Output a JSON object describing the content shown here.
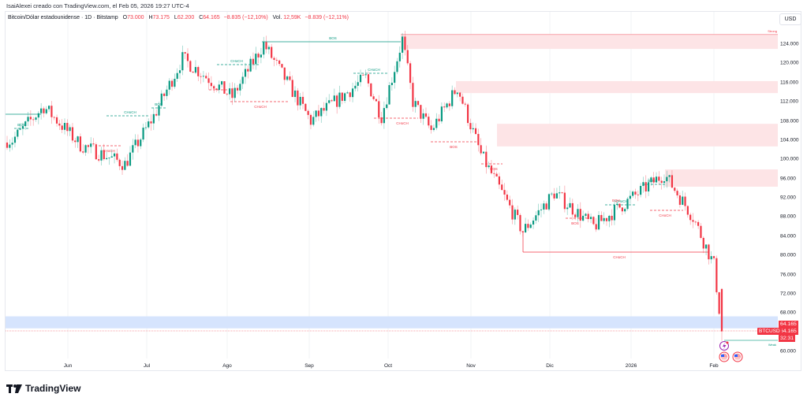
{
  "caption": "IsaiAlexei creado con TradingView.com, el Feb 05, 2026 19:27 UTC-4",
  "legend": {
    "symbol": "Bitcoin/Dólar estadounidense · 1D · Bitstamp",
    "open_label": "O",
    "open": "73.000",
    "high_label": "H",
    "high": "73.175",
    "low_label": "L",
    "low": "62.200",
    "close_label": "C",
    "close": "64.165",
    "change": "−8.835 (−12,10%)",
    "vol_label": "Vol.",
    "vol": "12,59K",
    "vol_change": "−8.839 (−12,11%)"
  },
  "currency_button": "USD",
  "price_tags": {
    "last": "64.165",
    "last2": "64.165",
    "countdown": "32:31",
    "symbol": "BTCUSD"
  },
  "logo_text": "TradingView",
  "colors": {
    "up": "#089981",
    "down": "#f23645",
    "supply_zone": "#fde4e6",
    "demand_zone": "#d6e4fd",
    "bos": "#089981",
    "choch_bear": "#f23645"
  },
  "chart_data": {
    "type": "candlestick",
    "title": "Bitcoin/Dólar estadounidense · 1D · Bitstamp",
    "ylabel": "USD",
    "ylim": [
      58000,
      128000
    ],
    "y_ticks": [
      "124.000",
      "120.000",
      "116.000",
      "112.000",
      "108.000",
      "104.000",
      "100.000",
      "96.000",
      "92.000",
      "88.000",
      "84.000",
      "80.000",
      "76.000",
      "72.000",
      "68.000",
      "60.000"
    ],
    "x_ticks": [
      "Jun",
      "Jul",
      "Ago",
      "Sep",
      "Oct",
      "Nov",
      "Dic",
      "2026",
      "Feb"
    ],
    "last_close": 64165,
    "approx_path": [
      {
        "date": "2025-05-10",
        "close": 104000
      },
      {
        "date": "2025-05-22",
        "close": 111000
      },
      {
        "date": "2025-06-05",
        "close": 103000
      },
      {
        "date": "2025-06-22",
        "close": 99000
      },
      {
        "date": "2025-07-03",
        "close": 109000
      },
      {
        "date": "2025-07-14",
        "close": 121000
      },
      {
        "date": "2025-08-02",
        "close": 113000
      },
      {
        "date": "2025-08-14",
        "close": 124000
      },
      {
        "date": "2025-09-01",
        "close": 108000
      },
      {
        "date": "2025-09-22",
        "close": 117000
      },
      {
        "date": "2025-09-28",
        "close": 109000
      },
      {
        "date": "2025-10-06",
        "close": 125000
      },
      {
        "date": "2025-10-10",
        "close": 112000
      },
      {
        "date": "2025-10-17",
        "close": 106000
      },
      {
        "date": "2025-10-27",
        "close": 115000
      },
      {
        "date": "2025-11-05",
        "close": 101000
      },
      {
        "date": "2025-11-21",
        "close": 85000
      },
      {
        "date": "2025-12-03",
        "close": 93000
      },
      {
        "date": "2025-12-18",
        "close": 86000
      },
      {
        "date": "2026-01-14",
        "close": 97000
      },
      {
        "date": "2026-01-25",
        "close": 88000
      },
      {
        "date": "2026-02-02",
        "close": 78000
      },
      {
        "date": "2026-02-05",
        "close": 64165
      }
    ],
    "annotations": [
      {
        "type": "BOS",
        "color": "green",
        "price": 109000,
        "label": "BOS"
      },
      {
        "type": "BOS",
        "color": "green",
        "price": 124500,
        "label": "BOS"
      },
      {
        "type": "CHoCH",
        "color": "green",
        "label": "CHoCH"
      },
      {
        "type": "CHoCH",
        "color": "red",
        "label": "CHoCH"
      },
      {
        "type": "BOS",
        "color": "red",
        "label": "BOS"
      },
      {
        "type": "CHoCH",
        "color": "red",
        "price": 80500,
        "label": "CHoCH"
      },
      {
        "type": "EQH",
        "label": "EQH"
      },
      {
        "type": "zone",
        "label": "Strong",
        "from": 123000,
        "to": 126000
      },
      {
        "type": "zone",
        "label": "Weak",
        "price": 62200
      }
    ],
    "zones": [
      {
        "kind": "supply",
        "top": 126000,
        "bottom": 123000
      },
      {
        "kind": "supply",
        "top": 116300,
        "bottom": 113800
      },
      {
        "kind": "supply",
        "top": 107400,
        "bottom": 102700
      },
      {
        "kind": "supply",
        "top": 97900,
        "bottom": 94300
      },
      {
        "kind": "demand",
        "top": 67300,
        "bottom": 64800
      }
    ],
    "labels": {
      "strong": "Strong",
      "weak": "Weak"
    }
  }
}
